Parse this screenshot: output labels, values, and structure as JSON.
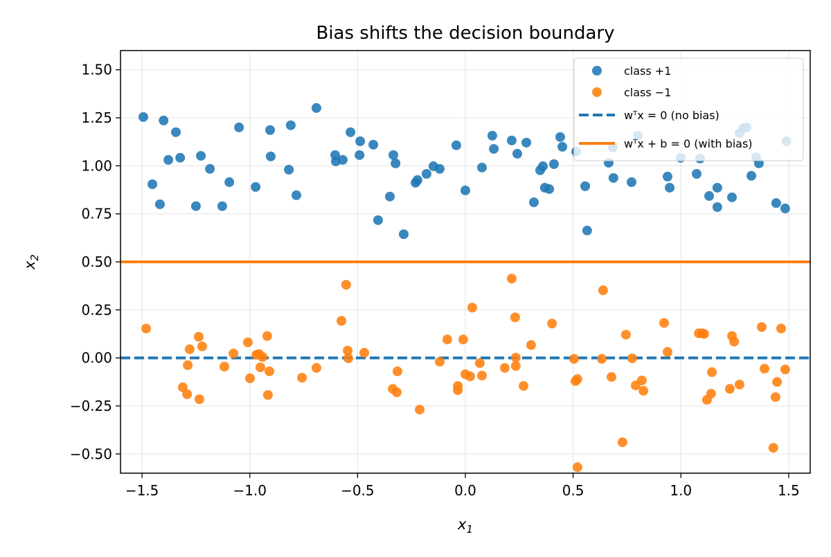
{
  "chart_data": {
    "type": "scatter",
    "title": "Bias shifts the decision boundary",
    "xlabel": "x1",
    "ylabel": "x2",
    "xlim": [
      -1.6,
      1.6
    ],
    "ylim": [
      -0.6,
      1.6
    ],
    "grid": true,
    "legend_placement": "top-right",
    "xticks": [
      -1.5,
      -1.0,
      -0.5,
      0.0,
      0.5,
      1.0,
      1.5
    ],
    "xtick_labels": [
      "−1.5",
      "−1.0",
      "−0.5",
      "0.0",
      "0.5",
      "1.0",
      "1.5"
    ],
    "yticks": [
      -0.5,
      -0.25,
      0.0,
      0.25,
      0.5,
      0.75,
      1.0,
      1.25,
      1.5
    ],
    "ytick_labels": [
      "−0.50",
      "−0.25",
      "0.00",
      "0.25",
      "0.50",
      "0.75",
      "1.00",
      "1.25",
      "1.50"
    ],
    "series": [
      {
        "name": "class +1",
        "kind": "scatter",
        "color": "#1f77b4",
        "points": [
          [
            -1.494,
            1.254
          ],
          [
            -1.452,
            0.904
          ],
          [
            -1.4,
            1.236
          ],
          [
            -1.417,
            0.8
          ],
          [
            -1.378,
            1.031
          ],
          [
            -1.343,
            1.175
          ],
          [
            -1.323,
            1.042
          ],
          [
            -1.25,
            0.79
          ],
          [
            -1.227,
            1.052
          ],
          [
            -1.185,
            0.984
          ],
          [
            -1.128,
            0.79
          ],
          [
            -1.095,
            0.915
          ],
          [
            -1.05,
            1.2
          ],
          [
            -0.973,
            0.89
          ],
          [
            -0.906,
            1.186
          ],
          [
            -0.903,
            1.049
          ],
          [
            -0.819,
            0.98
          ],
          [
            -0.81,
            1.211
          ],
          [
            -0.784,
            0.847
          ],
          [
            -0.691,
            1.301
          ],
          [
            -0.604,
            1.056
          ],
          [
            -0.601,
            1.023
          ],
          [
            -0.569,
            1.031
          ],
          [
            -0.533,
            1.175
          ],
          [
            -0.488,
            1.128
          ],
          [
            -0.491,
            1.056
          ],
          [
            -0.427,
            1.11
          ],
          [
            -0.405,
            0.717
          ],
          [
            -0.35,
            0.84
          ],
          [
            -0.334,
            1.056
          ],
          [
            -0.324,
            1.013
          ],
          [
            -0.286,
            0.644
          ],
          [
            -0.231,
            0.912
          ],
          [
            -0.222,
            0.926
          ],
          [
            -0.18,
            0.958
          ],
          [
            -0.148,
            0.998
          ],
          [
            -0.119,
            0.984
          ],
          [
            -0.042,
            1.107
          ],
          [
            0.0,
            0.872
          ],
          [
            0.077,
            0.991
          ],
          [
            0.125,
            1.157
          ],
          [
            0.132,
            1.088
          ],
          [
            0.215,
            1.132
          ],
          [
            0.241,
            1.063
          ],
          [
            0.283,
            1.121
          ],
          [
            0.318,
            0.81
          ],
          [
            0.347,
            0.977
          ],
          [
            0.36,
            0.998
          ],
          [
            0.369,
            0.886
          ],
          [
            0.389,
            0.879
          ],
          [
            0.411,
            1.009
          ],
          [
            0.44,
            1.15
          ],
          [
            0.45,
            1.099
          ],
          [
            0.514,
            1.074
          ],
          [
            0.556,
            0.894
          ],
          [
            0.565,
            0.663
          ],
          [
            0.665,
            1.016
          ],
          [
            0.684,
            1.096
          ],
          [
            0.687,
            0.937
          ],
          [
            0.771,
            0.915
          ],
          [
            0.8,
            1.157
          ],
          [
            0.938,
            0.944
          ],
          [
            0.948,
            0.886
          ],
          [
            0.999,
            1.042
          ],
          [
            1.073,
            0.958
          ],
          [
            1.089,
            1.038
          ],
          [
            1.131,
            0.843
          ],
          [
            1.169,
            0.886
          ],
          [
            1.169,
            0.785
          ],
          [
            1.237,
            0.836
          ],
          [
            1.272,
            1.17
          ],
          [
            1.29,
            1.196
          ],
          [
            1.305,
            1.2
          ],
          [
            1.327,
            0.948
          ],
          [
            1.349,
            1.045
          ],
          [
            1.362,
            1.013
          ],
          [
            1.442,
            0.806
          ],
          [
            1.484,
            0.778
          ],
          [
            1.49,
            1.128
          ]
        ]
      },
      {
        "name": "class −1",
        "kind": "scatter",
        "color": "#ff7f0e",
        "points": [
          [
            -1.481,
            0.153
          ],
          [
            -1.311,
            -0.153
          ],
          [
            -1.291,
            -0.189
          ],
          [
            -1.288,
            -0.038
          ],
          [
            -1.279,
            0.045
          ],
          [
            -1.237,
            0.11
          ],
          [
            -1.234,
            -0.215
          ],
          [
            -1.221,
            0.06
          ],
          [
            -1.118,
            -0.045
          ],
          [
            -1.076,
            0.023
          ],
          [
            -1.009,
            0.081
          ],
          [
            -0.999,
            -0.106
          ],
          [
            -0.97,
            0.016
          ],
          [
            -0.957,
            0.02
          ],
          [
            -0.951,
            -0.049
          ],
          [
            -0.941,
            0.005
          ],
          [
            -0.919,
            0.114
          ],
          [
            -0.916,
            -0.193
          ],
          [
            -0.909,
            -0.07
          ],
          [
            -0.758,
            -0.103
          ],
          [
            -0.691,
            -0.052
          ],
          [
            -0.575,
            0.193
          ],
          [
            -0.553,
            0.381
          ],
          [
            -0.546,
            0.038
          ],
          [
            -0.543,
            -0.002
          ],
          [
            -0.469,
            0.027
          ],
          [
            -0.337,
            -0.161
          ],
          [
            -0.318,
            -0.179
          ],
          [
            -0.315,
            -0.07
          ],
          [
            -0.212,
            -0.269
          ],
          [
            -0.119,
            -0.02
          ],
          [
            -0.084,
            0.096
          ],
          [
            -0.035,
            -0.146
          ],
          [
            -0.035,
            -0.168
          ],
          [
            -0.01,
            0.096
          ],
          [
            0.0,
            -0.085
          ],
          [
            0.022,
            -0.096
          ],
          [
            0.032,
            0.262
          ],
          [
            0.067,
            -0.027
          ],
          [
            0.077,
            -0.092
          ],
          [
            0.183,
            -0.052
          ],
          [
            0.215,
            0.413
          ],
          [
            0.231,
            0.211
          ],
          [
            0.234,
            0.002
          ],
          [
            0.234,
            -0.042
          ],
          [
            0.27,
            -0.146
          ],
          [
            0.305,
            0.067
          ],
          [
            0.402,
            0.179
          ],
          [
            0.504,
            -0.005
          ],
          [
            0.511,
            -0.121
          ],
          [
            0.52,
            -0.11
          ],
          [
            0.52,
            -0.569
          ],
          [
            0.633,
            -0.005
          ],
          [
            0.639,
            0.352
          ],
          [
            0.678,
            -0.099
          ],
          [
            0.729,
            -0.439
          ],
          [
            0.745,
            0.121
          ],
          [
            0.774,
            -0.002
          ],
          [
            0.79,
            -0.143
          ],
          [
            0.819,
            -0.117
          ],
          [
            0.826,
            -0.171
          ],
          [
            0.922,
            0.182
          ],
          [
            0.938,
            0.031
          ],
          [
            1.083,
            0.128
          ],
          [
            1.099,
            0.128
          ],
          [
            1.108,
            0.125
          ],
          [
            1.121,
            -0.218
          ],
          [
            1.14,
            -0.186
          ],
          [
            1.144,
            -0.074
          ],
          [
            1.227,
            -0.161
          ],
          [
            1.237,
            0.114
          ],
          [
            1.247,
            0.085
          ],
          [
            1.272,
            -0.139
          ],
          [
            1.375,
            0.161
          ],
          [
            1.388,
            -0.056
          ],
          [
            1.429,
            -0.468
          ],
          [
            1.439,
            -0.204
          ],
          [
            1.446,
            -0.125
          ],
          [
            1.465,
            0.153
          ],
          [
            1.484,
            -0.06
          ]
        ]
      },
      {
        "name": "wᵀx = 0 (no bias)",
        "kind": "hline",
        "y": 0.0,
        "style": "dashed",
        "color": "#1f77b4"
      },
      {
        "name": "wᵀx + b = 0 (with bias)",
        "kind": "hline",
        "y": 0.5,
        "style": "solid",
        "color": "#ff7f0e"
      }
    ]
  }
}
